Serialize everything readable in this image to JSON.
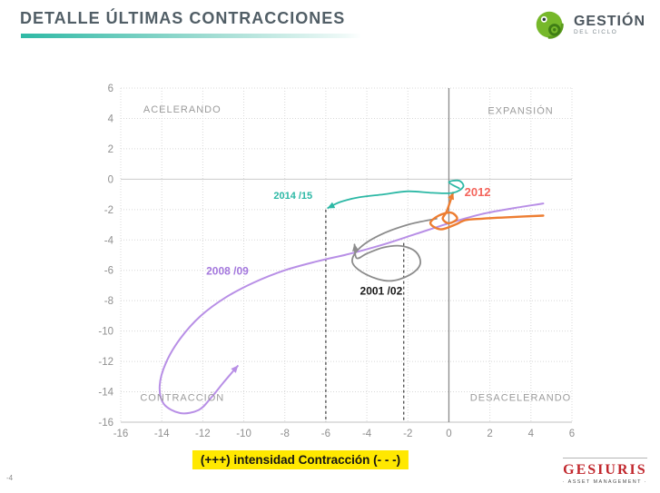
{
  "slide": {
    "title": "DETALLE ÚLTIMAS CONTRACCIONES",
    "page_number": "-4",
    "footer_highlight": "(+++) intensidad Contracción  (- - -)",
    "colors": {
      "accent_teal": "#2eb9a5",
      "highlight_yellow": "#ffe800",
      "title_gray": "#515e66",
      "gesiuris_red": "#c1272d"
    }
  },
  "logo_top": {
    "name": "GESTIÓN",
    "sub": "DEL CICLO"
  },
  "logo_bottom": {
    "name": "GESIURIS",
    "sub": "· ASSET MANAGEMENT ·"
  },
  "chart_data": {
    "type": "line",
    "title": "",
    "xlabel": "",
    "ylabel": "",
    "xlim": [
      -16,
      6
    ],
    "ylim": [
      -16,
      6
    ],
    "grid": true,
    "x_ticks": [
      -16,
      -14,
      -12,
      -10,
      -8,
      -6,
      -4,
      -2,
      0,
      2,
      4,
      6
    ],
    "y_ticks": [
      6,
      4,
      2,
      0,
      -2,
      -4,
      -6,
      -8,
      -10,
      -12,
      -14,
      -16
    ],
    "quadrant_labels": [
      {
        "text": "ACELERANDO",
        "x": -13.0,
        "y": 4.4
      },
      {
        "text": "EXPANSIÓN",
        "x": 3.5,
        "y": 4.3
      },
      {
        "text": "CONTRACCIÓN",
        "x": -13.0,
        "y": -14.6
      },
      {
        "text": "DESACELERANDO",
        "x": 3.5,
        "y": -14.6
      }
    ],
    "series": [
      {
        "name": "2008 /09",
        "color": "#b88fe6",
        "label_color": "#a478dd",
        "stroke_width": 2,
        "arrow": true,
        "label": {
          "text": "2008 /09",
          "x": -10.8,
          "y": -6.3,
          "size": 12
        },
        "points": [
          [
            4.6,
            -1.6
          ],
          [
            3.2,
            -1.9
          ],
          [
            1.6,
            -2.3
          ],
          [
            0.0,
            -2.9
          ],
          [
            -1.6,
            -3.6
          ],
          [
            -3.2,
            -4.3
          ],
          [
            -4.8,
            -4.9
          ],
          [
            -6.4,
            -5.4
          ],
          [
            -8.0,
            -6.0
          ],
          [
            -9.5,
            -6.8
          ],
          [
            -10.9,
            -7.8
          ],
          [
            -12.1,
            -9.0
          ],
          [
            -13.1,
            -10.5
          ],
          [
            -13.8,
            -12.1
          ],
          [
            -14.1,
            -13.6
          ],
          [
            -13.9,
            -14.8
          ],
          [
            -13.1,
            -15.4
          ],
          [
            -12.2,
            -15.2
          ],
          [
            -11.6,
            -14.4
          ],
          [
            -11.0,
            -13.4
          ],
          [
            -10.3,
            -12.3
          ]
        ]
      },
      {
        "name": "2001 /02",
        "color": "#8c8c8c",
        "label_color": "#1a1a1a",
        "stroke_width": 1.8,
        "arrow": true,
        "label": {
          "text": "2001 /02",
          "x": -3.3,
          "y": -7.6,
          "size": 12
        },
        "points": [
          [
            -0.6,
            -2.6
          ],
          [
            -2.0,
            -3.0
          ],
          [
            -3.4,
            -3.7
          ],
          [
            -4.4,
            -4.6
          ],
          [
            -4.7,
            -5.5
          ],
          [
            -4.0,
            -6.3
          ],
          [
            -2.9,
            -6.7
          ],
          [
            -1.9,
            -6.3
          ],
          [
            -1.4,
            -5.6
          ],
          [
            -1.6,
            -4.8
          ],
          [
            -2.3,
            -4.4
          ],
          [
            -3.2,
            -4.5
          ],
          [
            -4.0,
            -4.9
          ],
          [
            -4.5,
            -5.2
          ],
          [
            -4.6,
            -4.3
          ]
        ]
      },
      {
        "name": "2012",
        "color": "#ed7d31",
        "label_color": "#f4655c",
        "stroke_width": 2.4,
        "arrow": true,
        "label": {
          "text": "2012",
          "x": 1.4,
          "y": -1.1,
          "size": 13
        },
        "points": [
          [
            4.6,
            -2.4
          ],
          [
            3.0,
            -2.5
          ],
          [
            1.6,
            -2.6
          ],
          [
            0.8,
            -2.7
          ],
          [
            0.3,
            -3.0
          ],
          [
            -0.4,
            -3.3
          ],
          [
            -0.9,
            -2.9
          ],
          [
            -0.5,
            -2.4
          ],
          [
            0.1,
            -2.2
          ],
          [
            0.4,
            -2.6
          ],
          [
            0.0,
            -2.9
          ],
          [
            -0.3,
            -2.6
          ],
          [
            -0.1,
            -2.1
          ],
          [
            0.2,
            -0.9
          ]
        ]
      },
      {
        "name": "2014 /15",
        "color": "#2cb8a5",
        "label_color": "#2cb8a5",
        "stroke_width": 1.8,
        "arrow": true,
        "label": {
          "text": "2014 /15",
          "x": -7.6,
          "y": -1.3,
          "size": 11
        },
        "points": [
          [
            0.5,
            -0.6
          ],
          [
            0.0,
            -0.2
          ],
          [
            0.5,
            -0.1
          ],
          [
            0.7,
            -0.5
          ],
          [
            0.2,
            -0.9
          ],
          [
            -0.8,
            -0.9
          ],
          [
            -2.0,
            -0.8
          ],
          [
            -3.2,
            -1.0
          ],
          [
            -4.4,
            -1.2
          ],
          [
            -5.3,
            -1.5
          ],
          [
            -5.9,
            -1.9
          ]
        ]
      }
    ],
    "dashed_lines": [
      {
        "x": -6.0,
        "y_from": -2.0,
        "y_to": -16
      },
      {
        "x": -2.2,
        "y_from": -4.2,
        "y_to": -16
      }
    ],
    "legend_position": "none"
  }
}
